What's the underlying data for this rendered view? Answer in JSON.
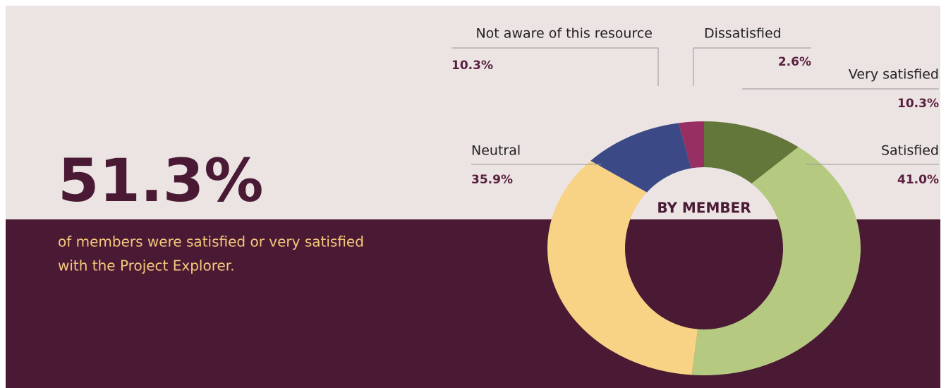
{
  "stat": {
    "headline": "51.3%",
    "caption": [
      "of members were satisfied or very satisfied",
      "with the Project Explorer."
    ]
  },
  "chart_data": {
    "type": "donut",
    "center_label": "BY MEMBER",
    "categories": [
      "Very satisfied",
      "Satisfied",
      "Neutral",
      "Not aware of this resource",
      "Dissatisfied"
    ],
    "values": [
      10.3,
      41.0,
      35.9,
      10.3,
      2.6
    ],
    "value_labels": [
      "10.3%",
      "41.0%",
      "35.9%",
      "10.3%",
      "2.6%"
    ],
    "colors": [
      "#64773b",
      "#b5ca80",
      "#f8d385",
      "#3b4a86",
      "#982f62"
    ]
  }
}
